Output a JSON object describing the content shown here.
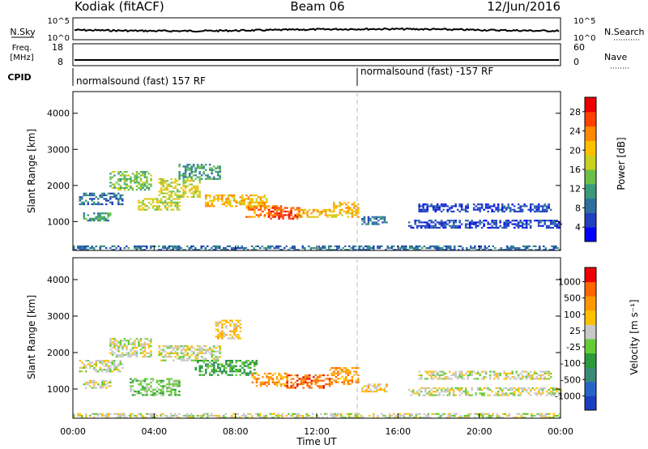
{
  "header": {
    "station": "Kodiak (fitACF)",
    "beam": "Beam 06",
    "date": "12/Jun/2016"
  },
  "top_panels": {
    "nsky_label": "N.Sky",
    "nsky_ticks": [
      "10^5",
      "10^0"
    ],
    "nsearch_label": "N.Search",
    "nsearch_ticks": [
      "10^5",
      "10^0"
    ],
    "freq_label_line1": "Freq.",
    "freq_label_line2": "[MHz]",
    "freq_ticks": [
      "18",
      "8"
    ],
    "nave_label": "Nave",
    "nave_ticks": [
      "60",
      "0"
    ],
    "cpid_label": "CPID",
    "cpid_segments": [
      {
        "text": "normalsound (fast) 157 RF",
        "start_hour": 0
      },
      {
        "text": "normalsound (fast) -157 RF",
        "start_hour": 14
      }
    ]
  },
  "chart_data": [
    {
      "type": "heatmap",
      "title": "",
      "xlabel": "",
      "ylabel": "Slant Range [km]",
      "xlim_hours": [
        0,
        24
      ],
      "ylim_km": [
        200,
        4600
      ],
      "yticks": [
        1000,
        2000,
        3000,
        4000
      ],
      "colorbar": {
        "label": "Power [dB]",
        "ticks": [
          "4",
          "8",
          "12",
          "16",
          "20",
          "24",
          "28"
        ],
        "colors": [
          "#0000ff",
          "#2040c0",
          "#2f6fa0",
          "#3a9a7a",
          "#6cc04a",
          "#c8d020",
          "#ffc000",
          "#ff8800",
          "#ff4000",
          "#ee0000"
        ]
      },
      "echo_regions": [
        {
          "t0": 0.3,
          "t1": 2.4,
          "r0": 1500,
          "r1": 1800,
          "level": 2
        },
        {
          "t0": 0.5,
          "t1": 1.8,
          "r0": 1050,
          "r1": 1250,
          "level": 3
        },
        {
          "t0": 1.8,
          "t1": 3.8,
          "r0": 1900,
          "r1": 2400,
          "level": 4
        },
        {
          "t0": 3.2,
          "t1": 5.2,
          "r0": 1350,
          "r1": 1650,
          "level": 5
        },
        {
          "t0": 4.2,
          "t1": 6.2,
          "r0": 1700,
          "r1": 2200,
          "level": 5
        },
        {
          "t0": 5.2,
          "t1": 7.2,
          "r0": 2200,
          "r1": 2600,
          "level": 3
        },
        {
          "t0": 6.5,
          "t1": 9.5,
          "r0": 1450,
          "r1": 1750,
          "level": 6
        },
        {
          "t0": 8.5,
          "t1": 10.3,
          "r0": 1150,
          "r1": 1450,
          "level": 7
        },
        {
          "t0": 9.6,
          "t1": 11.2,
          "r0": 1100,
          "r1": 1400,
          "level": 8
        },
        {
          "t0": 11.0,
          "t1": 12.8,
          "r0": 1150,
          "r1": 1350,
          "level": 6
        },
        {
          "t0": 12.8,
          "t1": 14.0,
          "r0": 1150,
          "r1": 1550,
          "level": 6
        },
        {
          "t0": 14.2,
          "t1": 15.4,
          "r0": 950,
          "r1": 1150,
          "level": 2
        },
        {
          "t0": 16.5,
          "t1": 24.0,
          "r0": 850,
          "r1": 1050,
          "level": 1
        },
        {
          "t0": 17.0,
          "t1": 23.5,
          "r0": 1300,
          "r1": 1500,
          "level": 1
        },
        {
          "t0": 0.0,
          "t1": 24.0,
          "r0": 220,
          "r1": 340,
          "level": 2
        }
      ]
    },
    {
      "type": "heatmap",
      "title": "",
      "xlabel": "Time UT",
      "ylabel": "Slant Range [km]",
      "xlim_hours": [
        0,
        24
      ],
      "ylim_km": [
        200,
        4600
      ],
      "xticks": [
        "00:00",
        "04:00",
        "08:00",
        "12:00",
        "16:00",
        "20:00",
        "00:00"
      ],
      "yticks": [
        1000,
        2000,
        3000,
        4000
      ],
      "colorbar": {
        "label": "Velocity [m s⁻¹]",
        "ticks": [
          "1000",
          "500",
          "100",
          "25",
          "-25",
          "-100",
          "-500",
          "-1000"
        ],
        "colors": [
          "#1a3fc0",
          "#2a63c8",
          "#3a8a78",
          "#2a9a3a",
          "#66cc33",
          "#c8c8c8",
          "#ffc000",
          "#ff9900",
          "#ff6600",
          "#ee0000"
        ]
      },
      "echo_regions": [
        {
          "t0": 0.3,
          "t1": 2.4,
          "r0": 1500,
          "r1": 1800,
          "level": 5
        },
        {
          "t0": 0.5,
          "t1": 1.8,
          "r0": 1050,
          "r1": 1250,
          "level": 5
        },
        {
          "t0": 1.8,
          "t1": 3.8,
          "r0": 1900,
          "r1": 2400,
          "level": 5
        },
        {
          "t0": 2.8,
          "t1": 5.2,
          "r0": 850,
          "r1": 1300,
          "level": 4
        },
        {
          "t0": 4.2,
          "t1": 7.2,
          "r0": 1800,
          "r1": 2200,
          "level": 5
        },
        {
          "t0": 6.0,
          "t1": 9.0,
          "r0": 1400,
          "r1": 1800,
          "level": 3
        },
        {
          "t0": 7.0,
          "t1": 8.2,
          "r0": 2400,
          "r1": 2900,
          "level": 6
        },
        {
          "t0": 8.8,
          "t1": 10.5,
          "r0": 1100,
          "r1": 1450,
          "level": 7
        },
        {
          "t0": 10.5,
          "t1": 12.6,
          "r0": 1050,
          "r1": 1400,
          "level": 8
        },
        {
          "t0": 12.6,
          "t1": 14.0,
          "r0": 1150,
          "r1": 1600,
          "level": 7
        },
        {
          "t0": 14.2,
          "t1": 15.4,
          "r0": 950,
          "r1": 1150,
          "level": 6
        },
        {
          "t0": 16.5,
          "t1": 24.0,
          "r0": 850,
          "r1": 1050,
          "level": 5
        },
        {
          "t0": 17.0,
          "t1": 23.5,
          "r0": 1300,
          "r1": 1500,
          "level": 5
        },
        {
          "t0": 0.0,
          "t1": 24.0,
          "r0": 220,
          "r1": 340,
          "level": 5
        }
      ]
    }
  ]
}
